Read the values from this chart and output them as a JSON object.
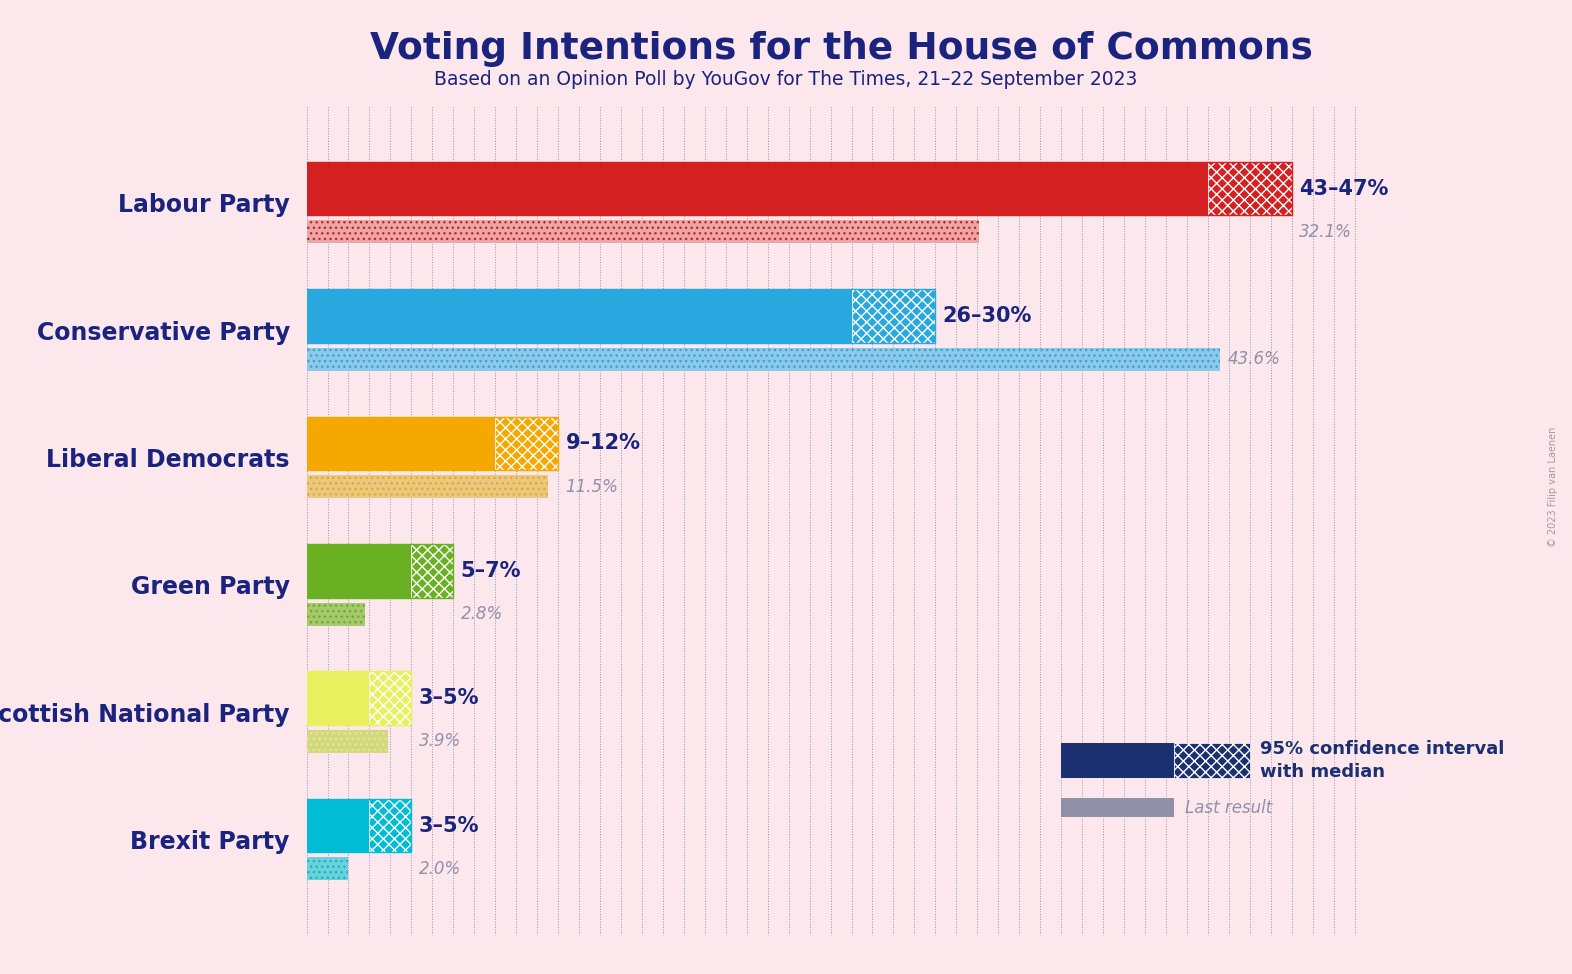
{
  "title": "Voting Intentions for the House of Commons",
  "subtitle": "Based on an Opinion Poll by YouGov for The Times, 21–22 September 2023",
  "background_color": "#fce8ec",
  "parties": [
    {
      "name": "Labour Party",
      "ci_low": 43,
      "ci_high": 47,
      "last_result": 32.1,
      "color": "#d42020",
      "color_light": "#e8a8a8",
      "label": "43–47%",
      "last_label": "32.1%"
    },
    {
      "name": "Conservative Party",
      "ci_low": 26,
      "ci_high": 30,
      "last_result": 43.6,
      "color": "#29a8e0",
      "color_light": "#90c8e8",
      "label": "26–30%",
      "last_label": "43.6%"
    },
    {
      "name": "Liberal Democrats",
      "ci_low": 9,
      "ci_high": 12,
      "last_result": 11.5,
      "color": "#f5a800",
      "color_light": "#e8c888",
      "label": "9–12%",
      "last_label": "11.5%"
    },
    {
      "name": "Green Party",
      "ci_low": 5,
      "ci_high": 7,
      "last_result": 2.8,
      "color": "#6ab023",
      "color_light": "#a8c870",
      "label": "5–7%",
      "last_label": "2.8%"
    },
    {
      "name": "Scottish National Party",
      "ci_low": 3,
      "ci_high": 5,
      "last_result": 3.9,
      "color": "#e8f060",
      "color_light": "#d0d888",
      "label": "3–5%",
      "last_label": "3.9%"
    },
    {
      "name": "Brexit Party",
      "ci_low": 3,
      "ci_high": 5,
      "last_result": 2.0,
      "color": "#00bcd4",
      "color_light": "#70d0d8",
      "label": "3–5%",
      "last_label": "2.0%"
    }
  ],
  "xlim": [
    0,
    51
  ],
  "party_label_color": "#1a237e",
  "title_color": "#1a237e",
  "subtitle_color": "#1a237e",
  "annotation_color_main": "#1a237e",
  "annotation_color_last": "#9090a8",
  "legend_navy": "#1a3070",
  "legend_gray": "#9090a8",
  "watermark": "© 2023 Filip van Laenen"
}
